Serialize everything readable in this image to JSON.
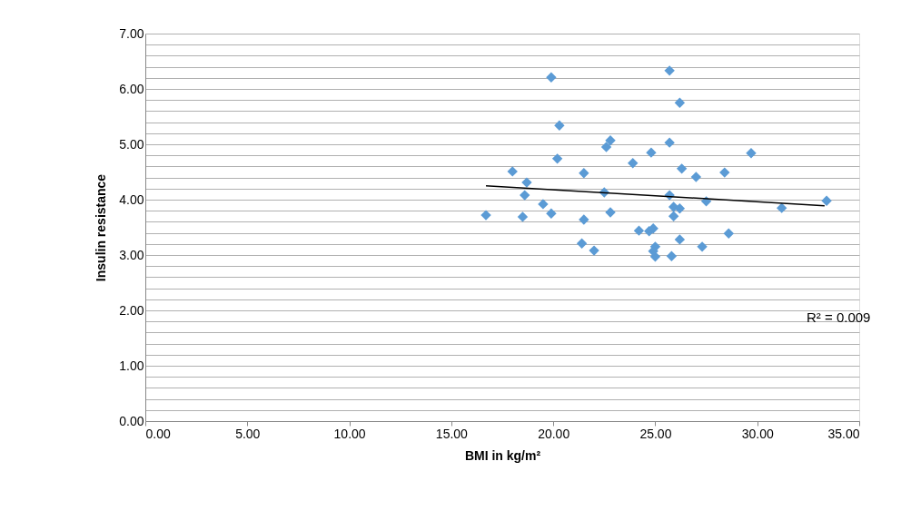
{
  "chart_data": {
    "type": "scatter",
    "xlabel": "BMI  in kg/m²",
    "ylabel": "Insulin  resistance",
    "marker": "diamond",
    "grid": "y",
    "xlim": [
      0,
      35
    ],
    "ylim": [
      0,
      7
    ],
    "xticks": [
      {
        "value": 0,
        "label": "0.00"
      },
      {
        "value": 5,
        "label": "5.00"
      },
      {
        "value": 10,
        "label": "10.00"
      },
      {
        "value": 15,
        "label": "15.00"
      },
      {
        "value": 20,
        "label": "20.00"
      },
      {
        "value": 25,
        "label": "25.00"
      },
      {
        "value": 30,
        "label": "30.00"
      },
      {
        "value": 35,
        "label": "35.00"
      }
    ],
    "yticks": [
      {
        "value": 0,
        "label": "0.00"
      },
      {
        "value": 0.2,
        "label": null
      },
      {
        "value": 0.4,
        "label": null
      },
      {
        "value": 0.6,
        "label": null
      },
      {
        "value": 0.8,
        "label": null
      },
      {
        "value": 1,
        "label": "1.00"
      },
      {
        "value": 1.2,
        "label": null
      },
      {
        "value": 1.4,
        "label": null
      },
      {
        "value": 1.6,
        "label": null
      },
      {
        "value": 1.8,
        "label": null
      },
      {
        "value": 2,
        "label": "2.00"
      },
      {
        "value": 2.2,
        "label": null
      },
      {
        "value": 2.4,
        "label": null
      },
      {
        "value": 2.6,
        "label": null
      },
      {
        "value": 2.8,
        "label": null
      },
      {
        "value": 3,
        "label": "3.00"
      },
      {
        "value": 3.2,
        "label": null
      },
      {
        "value": 3.4,
        "label": null
      },
      {
        "value": 3.6,
        "label": null
      },
      {
        "value": 3.8,
        "label": null
      },
      {
        "value": 4,
        "label": "4.00"
      },
      {
        "value": 4.2,
        "label": null
      },
      {
        "value": 4.4,
        "label": null
      },
      {
        "value": 4.6,
        "label": null
      },
      {
        "value": 4.8,
        "label": null
      },
      {
        "value": 5,
        "label": "5.00"
      },
      {
        "value": 5.2,
        "label": null
      },
      {
        "value": 5.4,
        "label": null
      },
      {
        "value": 5.6,
        "label": null
      },
      {
        "value": 5.8,
        "label": null
      },
      {
        "value": 6,
        "label": "6.00"
      },
      {
        "value": 6.2,
        "label": null
      },
      {
        "value": 6.4,
        "label": null
      },
      {
        "value": 6.6,
        "label": null
      },
      {
        "value": 6.8,
        "label": null
      },
      {
        "value": 7,
        "label": "7.00"
      }
    ],
    "annotations": [
      "R² = 0.009"
    ],
    "series": [
      {
        "color": "#5b9bd5",
        "x": [
          16.7,
          18.0,
          18.7,
          18.6,
          18.5,
          19.5,
          19.9,
          19.9,
          20.3,
          20.2,
          21.4,
          22.0,
          21.5,
          21.5,
          22.5,
          22.6,
          22.8,
          22.8,
          23.9,
          24.2,
          24.7,
          24.9,
          24.8,
          25.0,
          25.0,
          24.9,
          25.8,
          25.7,
          25.7,
          25.7,
          25.9,
          25.9,
          26.2,
          26.2,
          26.3,
          26.2,
          27.0,
          27.3,
          27.5,
          28.4,
          28.6,
          29.7,
          31.2,
          33.4
        ],
        "values": [
          3.72,
          4.51,
          4.31,
          4.08,
          3.69,
          3.92,
          3.75,
          6.21,
          5.34,
          4.74,
          3.21,
          3.08,
          3.64,
          4.48,
          4.13,
          4.95,
          5.07,
          3.77,
          4.66,
          3.44,
          3.43,
          3.48,
          4.85,
          3.15,
          2.97,
          3.07,
          2.98,
          6.33,
          5.03,
          4.08,
          3.87,
          3.7,
          3.84,
          5.75,
          4.56,
          3.28,
          4.41,
          3.15,
          3.97,
          4.49,
          3.39,
          4.84,
          3.85,
          3.98
        ]
      },
      {
        "type": "line",
        "marker": "none",
        "color": "#000000",
        "x": [
          16.7,
          33.3
        ],
        "values": [
          4.25,
          3.89
        ]
      }
    ]
  }
}
